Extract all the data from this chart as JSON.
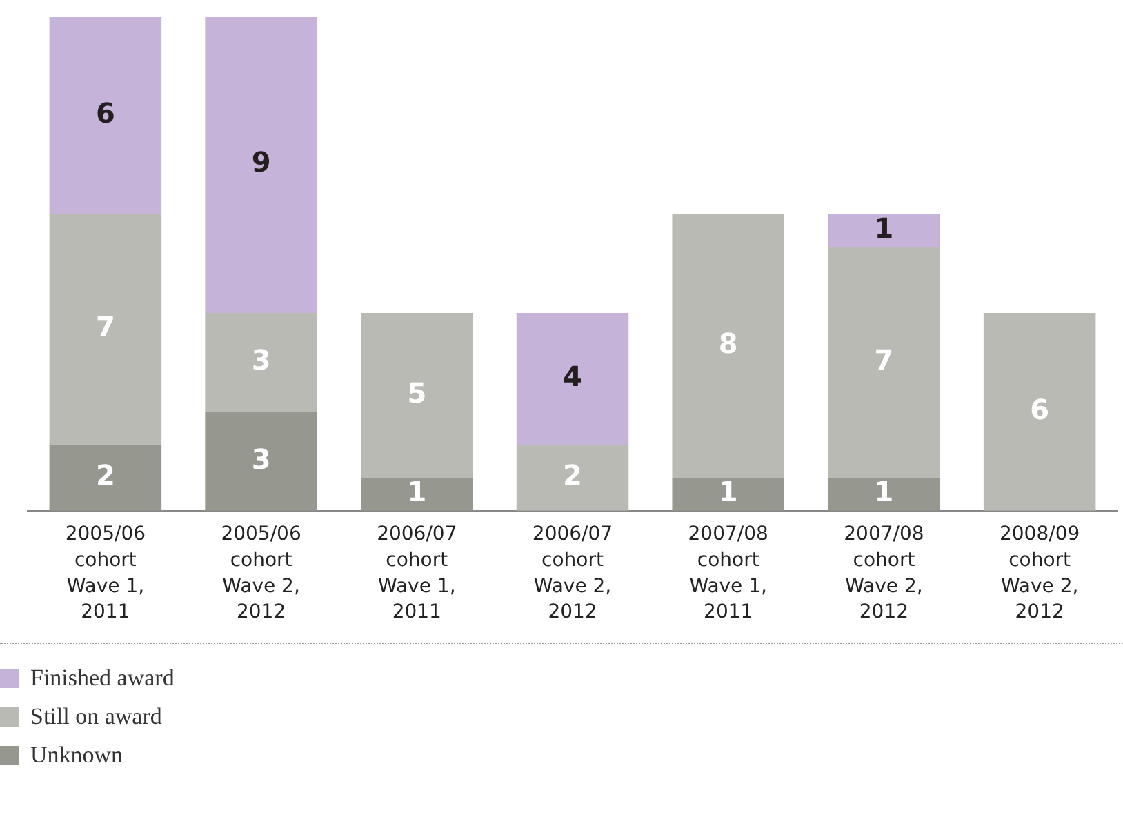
{
  "chart_data": {
    "type": "bar",
    "stacked": true,
    "categories": [
      "2005/06\ncohort\nWave 1,\n2011",
      "2005/06\ncohort\nWave 2,\n2012",
      "2006/07\ncohort\nWave 1,\n2011",
      "2006/07\ncohort\nWave 2,\n2012",
      "2007/08\ncohort\nWave 1,\n2011",
      "2007/08\ncohort\nWave 2,\n2012",
      "2008/09\ncohort\nWave 2,\n2012"
    ],
    "ylim": [
      0,
      15
    ],
    "legend": "bottom left",
    "grid": false,
    "series": [
      {
        "name": "Unknown",
        "color": "#96978f",
        "values": [
          2,
          3,
          1,
          0,
          1,
          1,
          0
        ],
        "value_labels": [
          "2",
          "3",
          "1",
          null,
          "1",
          "1",
          null
        ]
      },
      {
        "name": "Still on award",
        "color": "#b9bab4",
        "values": [
          7,
          3,
          5,
          2,
          8,
          7,
          6
        ],
        "value_labels": [
          "7",
          "3",
          "5",
          "2",
          "8",
          "7",
          "6"
        ]
      },
      {
        "name": "Finished award",
        "color": "#c5b3d9",
        "values": [
          6,
          9,
          0,
          4,
          0,
          1,
          0
        ],
        "value_labels": [
          "6",
          "9",
          null,
          "4",
          null,
          "1",
          null
        ]
      }
    ]
  }
}
